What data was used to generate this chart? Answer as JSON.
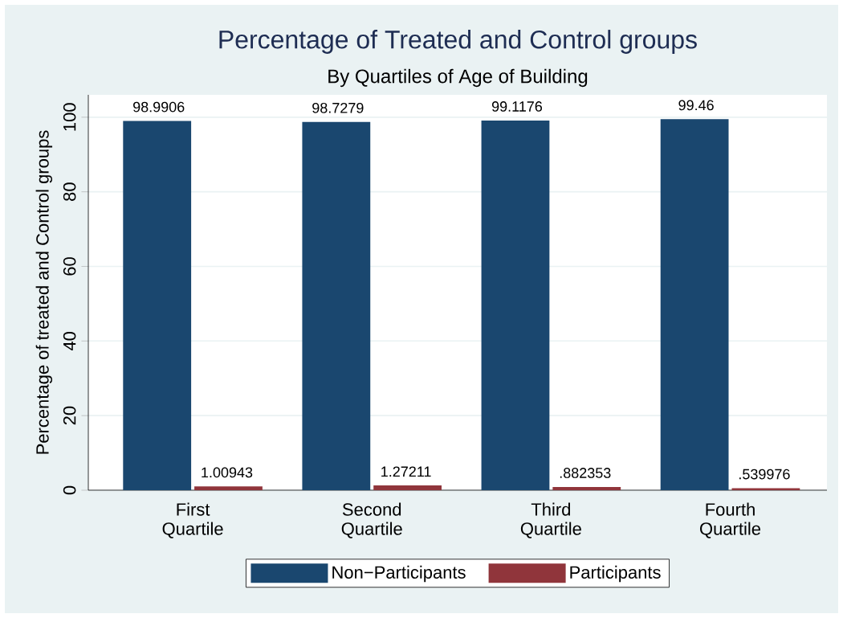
{
  "chart_data": {
    "type": "bar",
    "title": "Percentage of Treated and Control groups",
    "subtitle": "By Quartiles of Age of Building",
    "ylabel": "Percentage of treated and Control groups",
    "categories": [
      "First Quartile",
      "Second Quartile",
      "Third Quartile",
      "Fourth Quartile"
    ],
    "series": [
      {
        "name": "Non−Participants",
        "color": "#1a476f",
        "values": [
          98.9906,
          98.7279,
          99.1176,
          99.46
        ],
        "value_labels": [
          "98.9906",
          "98.7279",
          "99.1176",
          "99.46"
        ]
      },
      {
        "name": "Participants",
        "color": "#90353b",
        "values": [
          1.00943,
          1.27211,
          0.882353,
          0.539976
        ],
        "value_labels": [
          "1.00943",
          "1.27211",
          ".882353",
          ".539976"
        ]
      }
    ],
    "ylim": [
      0,
      106
    ],
    "yticks": [
      0,
      20,
      40,
      60,
      80,
      100
    ],
    "grid": "y",
    "legend": "bottom"
  }
}
